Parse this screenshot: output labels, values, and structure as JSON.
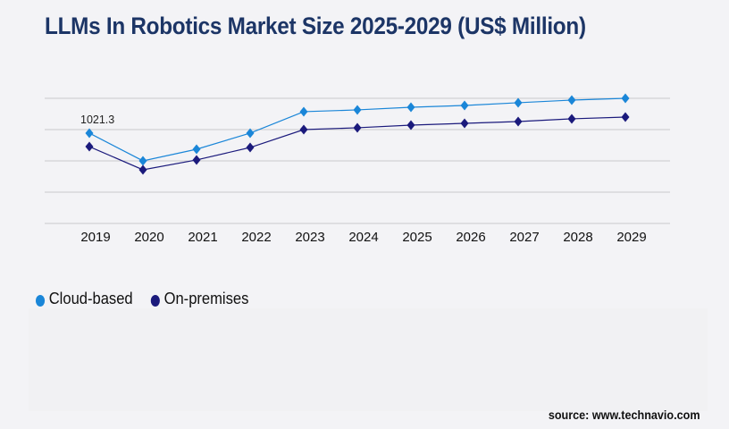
{
  "chart_data": {
    "type": "line",
    "title": "LLMs In Robotics Market Size 2025-2029 (US$ Million)",
    "xlabel": "",
    "ylabel": "",
    "categories": [
      "2019",
      "2020",
      "2021",
      "2022",
      "2023",
      "2024",
      "2025",
      "2026",
      "2027",
      "2028",
      "2029"
    ],
    "series": [
      {
        "name": "Cloud-based",
        "color": "#1a86d8",
        "values": [
          1021.3,
          708,
          839,
          1021,
          1264,
          1284,
          1314,
          1334,
          1365,
          1395,
          1415
        ]
      },
      {
        "name": "On-premises",
        "color": "#1b1a7c",
        "values": [
          869,
          607,
          718,
          859,
          1061,
          1082,
          1112,
          1132,
          1152,
          1183,
          1203
        ]
      }
    ],
    "annotations": [
      {
        "category": "2019",
        "series": "Cloud-based",
        "text": "1021.3"
      }
    ],
    "ylim": [
      0,
      1415
    ],
    "grid": true,
    "y_tick_labels_shown": false,
    "legend_position": "bottom-left",
    "marker": "diamond"
  },
  "source": "source: www.technavio.com"
}
